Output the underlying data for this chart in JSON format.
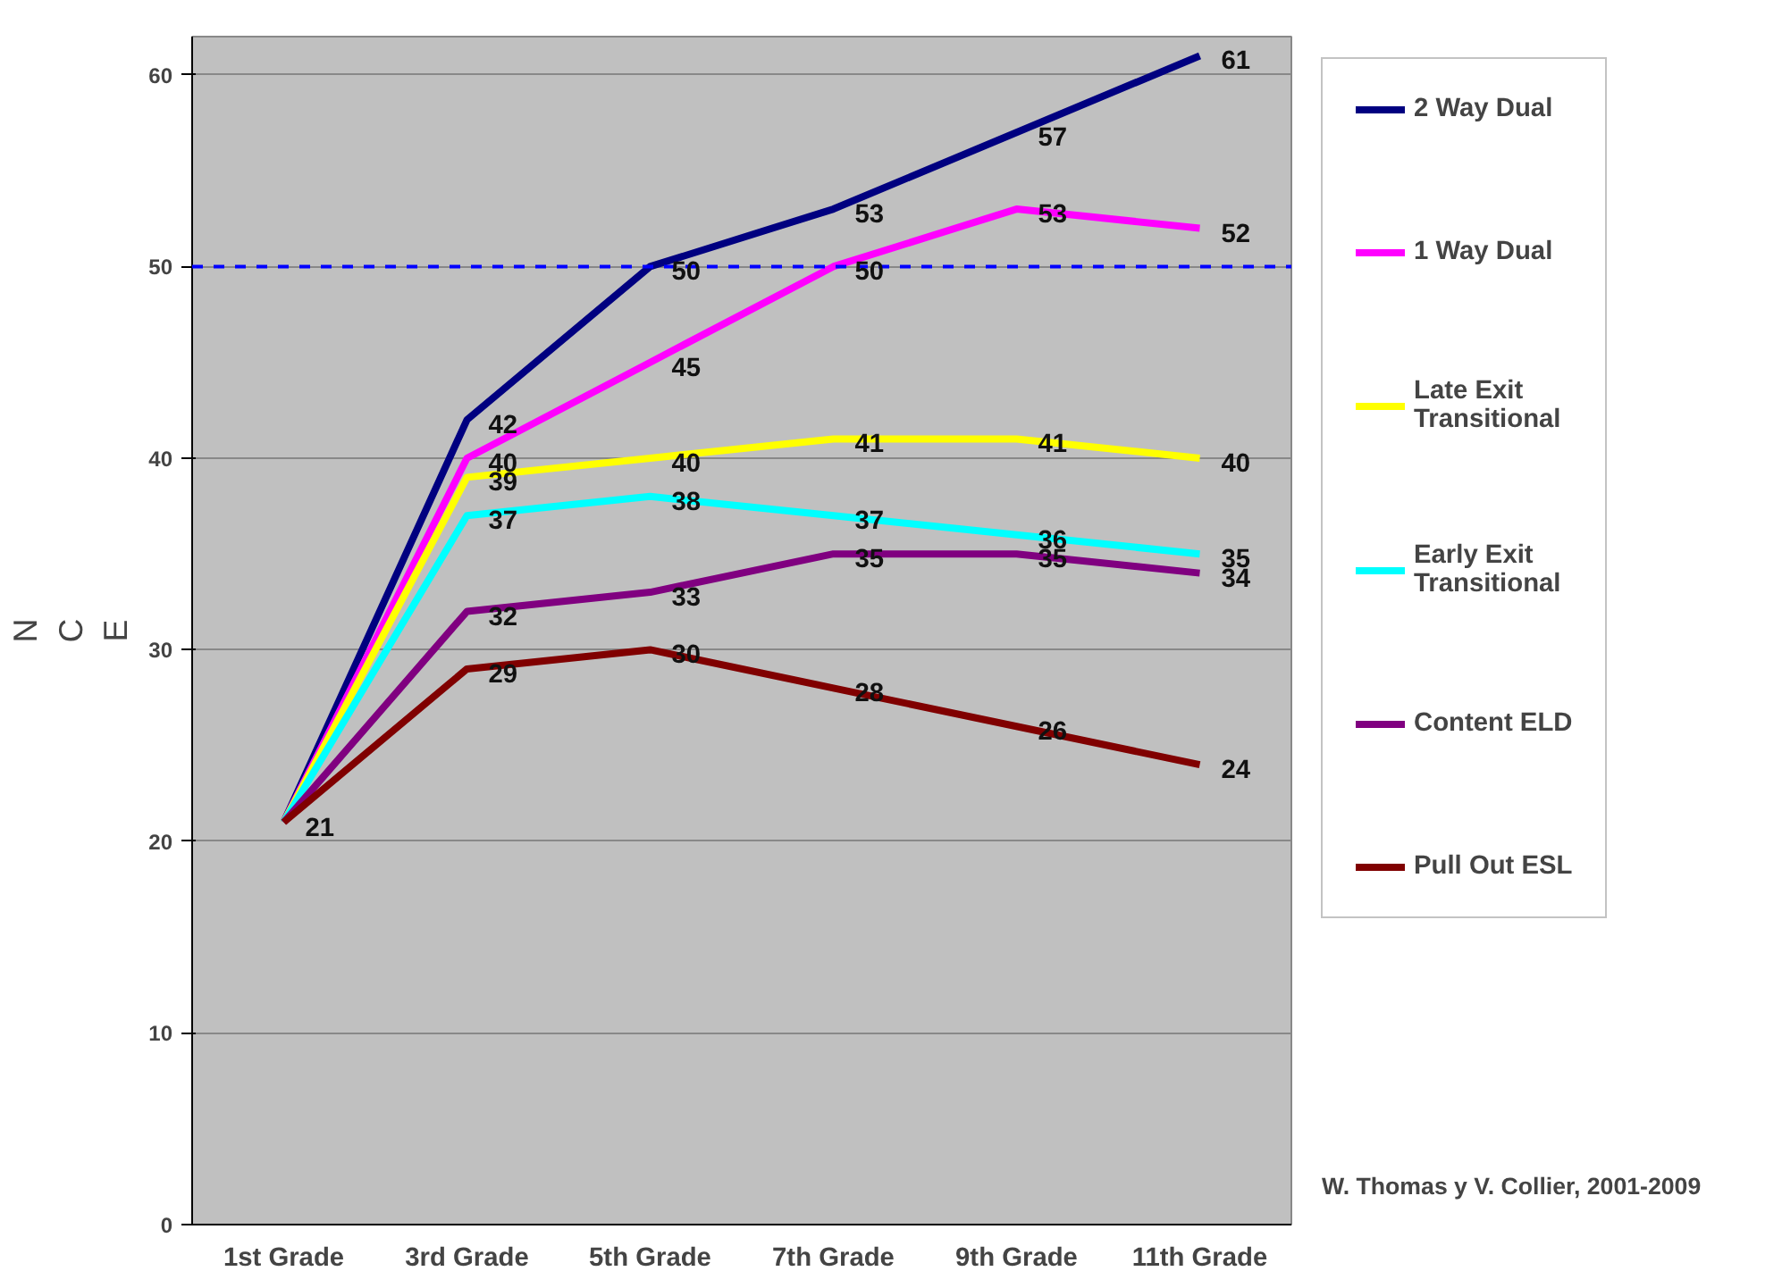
{
  "chart_data": {
    "type": "line",
    "ylabel": "NCE",
    "categories": [
      "1st Grade",
      "3rd Grade",
      "5th Grade",
      "7th Grade",
      "9th Grade",
      "11th Grade"
    ],
    "series": [
      {
        "name": "2 Way Dual",
        "color": "#000080",
        "values": [
          21,
          42,
          50,
          53,
          57,
          61
        ],
        "value_labels": [
          null,
          "42",
          "50",
          "53",
          "57",
          "61"
        ]
      },
      {
        "name": "1 Way Dual",
        "color": "#ff00ff",
        "values": [
          21,
          40,
          45,
          50,
          53,
          52
        ],
        "value_labels": [
          null,
          "40",
          "45",
          "50",
          "53",
          "52"
        ]
      },
      {
        "name": "Late Exit Transitional",
        "color": "#ffff00",
        "values": [
          21,
          39,
          40,
          41,
          41,
          40
        ],
        "value_labels": [
          null,
          "39",
          "40",
          "41",
          "41",
          "40"
        ]
      },
      {
        "name": "Early Exit Transitional",
        "color": "#00ffff",
        "values": [
          21,
          37,
          38,
          37,
          36,
          35
        ],
        "value_labels": [
          null,
          "37",
          "38",
          "37",
          "36",
          "35"
        ]
      },
      {
        "name": "Content ELD",
        "color": "#800080",
        "values": [
          21,
          32,
          33,
          35,
          35,
          34
        ],
        "value_labels": [
          null,
          "32",
          "33",
          "35",
          "35",
          "34"
        ]
      },
      {
        "name": "Pull Out ESL",
        "color": "#800000",
        "values": [
          21,
          29,
          30,
          28,
          26,
          24
        ],
        "value_labels": [
          "21",
          "29",
          "30",
          "28",
          "26",
          "24"
        ]
      }
    ],
    "ylim": [
      0,
      62
    ],
    "yticks": [
      0,
      10,
      20,
      30,
      40,
      50,
      60
    ],
    "grid": "y",
    "legend": "right",
    "marker": "none",
    "line_style": "solid",
    "ref_lines": [
      {
        "axis": "y",
        "value": 50,
        "label": null,
        "color": "#0000ff",
        "line_style": "dashed"
      }
    ],
    "annotations": [
      "W. Thomas y V. Collier, 2001-2009"
    ]
  }
}
